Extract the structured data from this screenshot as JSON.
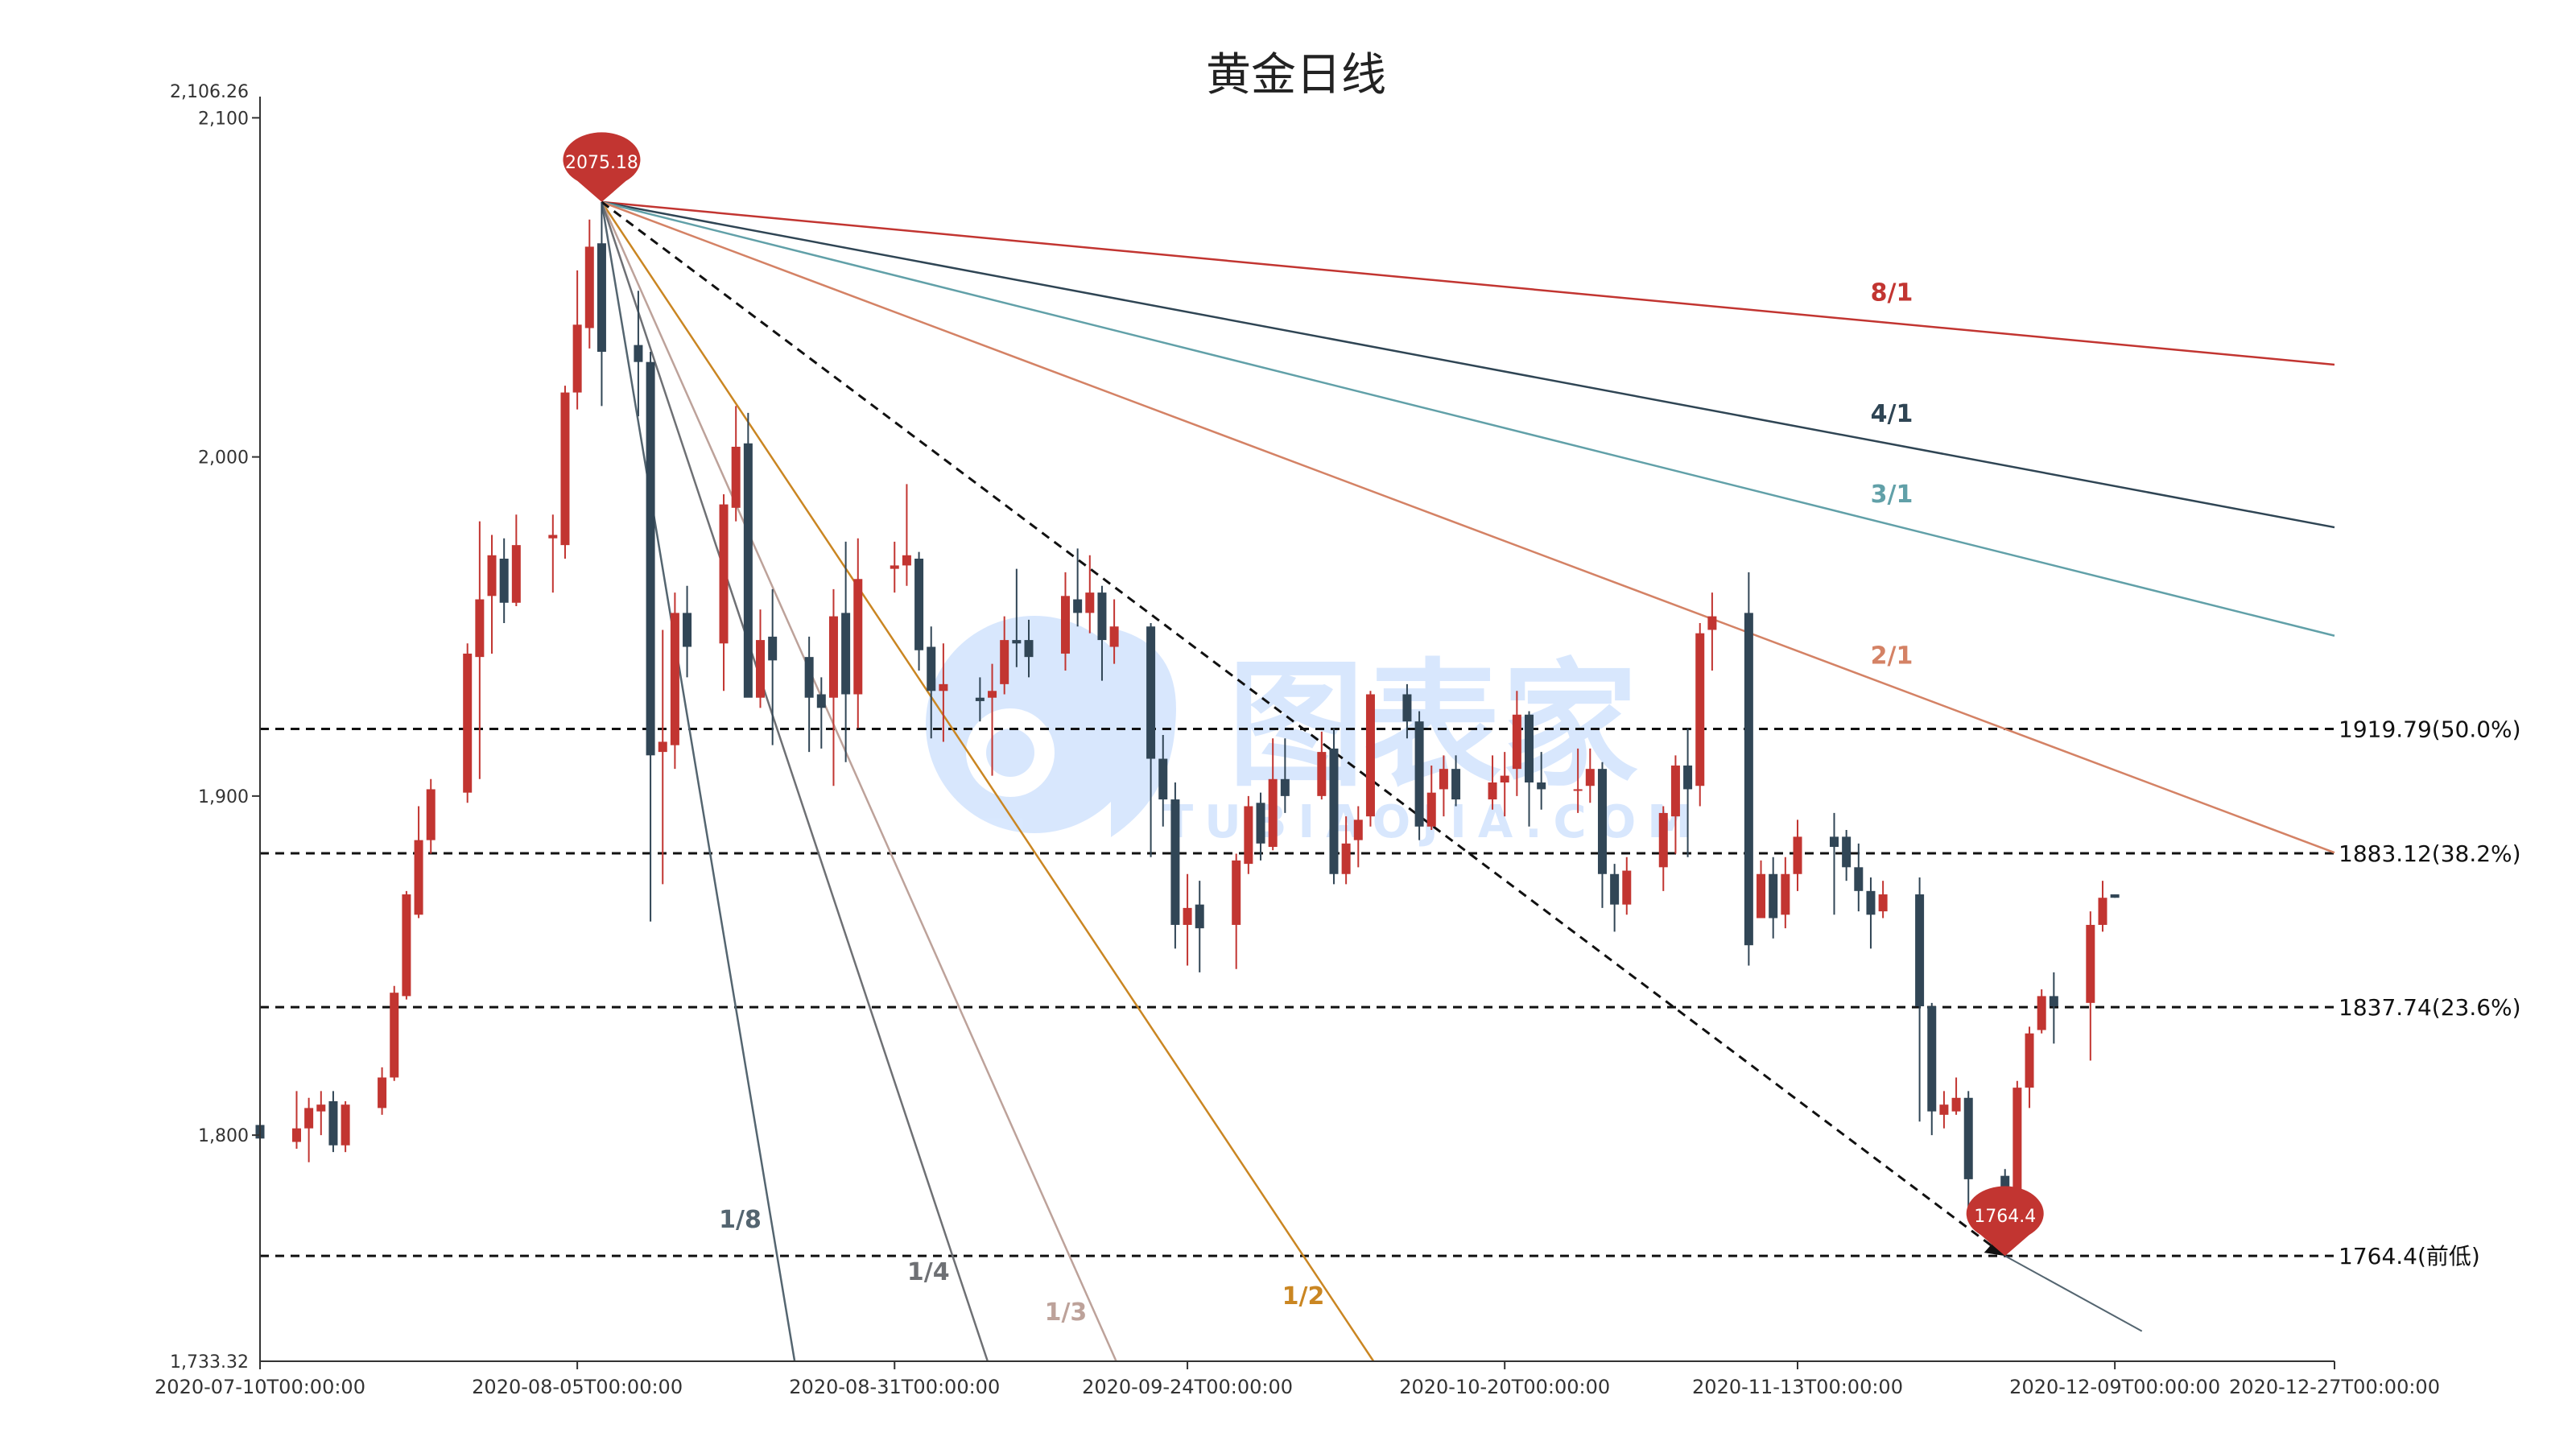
{
  "chart_data": {
    "type": "candlestick",
    "title": "黄金日线",
    "xlabel": "",
    "ylabel": "",
    "ylim": [
      1733.32,
      2106.26
    ],
    "xlim": [
      "2020-07-10",
      "2020-12-27"
    ],
    "y_extreme_labels": [
      "2,106.26",
      "1,733.32"
    ],
    "y_ticks": [
      {
        "value": 1800,
        "label": "1,800"
      },
      {
        "value": 1900,
        "label": "1,900"
      },
      {
        "value": 2000,
        "label": "2,000"
      },
      {
        "value": 2100,
        "label": "2,100"
      }
    ],
    "x_ticks": [
      {
        "date": "2020-07-10",
        "label": "2020-07-10T00:00:00"
      },
      {
        "date": "2020-08-05",
        "label": "2020-08-05T00:00:00"
      },
      {
        "date": "2020-08-31",
        "label": "2020-08-31T00:00:00"
      },
      {
        "date": "2020-09-24",
        "label": "2020-09-24T00:00:00"
      },
      {
        "date": "2020-10-20",
        "label": "2020-10-20T00:00:00"
      },
      {
        "date": "2020-11-13",
        "label": "2020-11-13T00:00:00"
      },
      {
        "date": "2020-12-09",
        "label": "2020-12-09T00:00:00"
      },
      {
        "date": "2020-12-27",
        "label": "2020-12-27T00:00:00"
      }
    ],
    "up_color": "#c23531",
    "down_color": "#314656",
    "candles": [
      {
        "date": "2020-07-10",
        "open": 1803,
        "high": 1810,
        "low": 1795,
        "close": 1799
      },
      {
        "date": "2020-07-13",
        "open": 1798,
        "high": 1813,
        "low": 1796,
        "close": 1802
      },
      {
        "date": "2020-07-14",
        "open": 1802,
        "high": 1811,
        "low": 1792,
        "close": 1808
      },
      {
        "date": "2020-07-15",
        "open": 1807,
        "high": 1813,
        "low": 1800,
        "close": 1809
      },
      {
        "date": "2020-07-16",
        "open": 1810,
        "high": 1813,
        "low": 1795,
        "close": 1797
      },
      {
        "date": "2020-07-17",
        "open": 1797,
        "high": 1810,
        "low": 1795,
        "close": 1809
      },
      {
        "date": "2020-07-20",
        "open": 1808,
        "high": 1820,
        "low": 1806,
        "close": 1817
      },
      {
        "date": "2020-07-21",
        "open": 1817,
        "high": 1844,
        "low": 1816,
        "close": 1842
      },
      {
        "date": "2020-07-22",
        "open": 1841,
        "high": 1872,
        "low": 1840,
        "close": 1871
      },
      {
        "date": "2020-07-23",
        "open": 1865,
        "high": 1897,
        "low": 1864,
        "close": 1887
      },
      {
        "date": "2020-07-24",
        "open": 1887,
        "high": 1905,
        "low": 1883,
        "close": 1902
      },
      {
        "date": "2020-07-27",
        "open": 1901,
        "high": 1945,
        "low": 1898,
        "close": 1942
      },
      {
        "date": "2020-07-28",
        "open": 1941,
        "high": 1981,
        "low": 1905,
        "close": 1958
      },
      {
        "date": "2020-07-29",
        "open": 1959,
        "high": 1977,
        "low": 1942,
        "close": 1971
      },
      {
        "date": "2020-07-30",
        "open": 1970,
        "high": 1976,
        "low": 1951,
        "close": 1957
      },
      {
        "date": "2020-07-31",
        "open": 1957,
        "high": 1983,
        "low": 1956,
        "close": 1974
      },
      {
        "date": "2020-08-03",
        "open": 1976,
        "high": 1983,
        "low": 1960,
        "close": 1977
      },
      {
        "date": "2020-08-04",
        "open": 1974,
        "high": 2021,
        "low": 1970,
        "close": 2019
      },
      {
        "date": "2020-08-05",
        "open": 2019,
        "high": 2055,
        "low": 2014,
        "close": 2039
      },
      {
        "date": "2020-08-06",
        "open": 2038,
        "high": 2070,
        "low": 2032,
        "close": 2062
      },
      {
        "date": "2020-08-07",
        "open": 2063,
        "high": 2075,
        "low": 2015,
        "close": 2031
      },
      {
        "date": "2020-08-10",
        "open": 2033,
        "high": 2049,
        "low": 2012,
        "close": 2028
      },
      {
        "date": "2020-08-11",
        "open": 2028,
        "high": 2031,
        "low": 1863,
        "close": 1912
      },
      {
        "date": "2020-08-12",
        "open": 1913,
        "high": 1949,
        "low": 1874,
        "close": 1916
      },
      {
        "date": "2020-08-13",
        "open": 1915,
        "high": 1960,
        "low": 1908,
        "close": 1954
      },
      {
        "date": "2020-08-14",
        "open": 1954,
        "high": 1962,
        "low": 1935,
        "close": 1944
      },
      {
        "date": "2020-08-17",
        "open": 1945,
        "high": 1989,
        "low": 1931,
        "close": 1986
      },
      {
        "date": "2020-08-18",
        "open": 1985,
        "high": 2015,
        "low": 1981,
        "close": 2003
      },
      {
        "date": "2020-08-19",
        "open": 2004,
        "high": 2013,
        "low": 1930,
        "close": 1929
      },
      {
        "date": "2020-08-20",
        "open": 1929,
        "high": 1955,
        "low": 1926,
        "close": 1946
      },
      {
        "date": "2020-08-21",
        "open": 1947,
        "high": 1961,
        "low": 1915,
        "close": 1940
      },
      {
        "date": "2020-08-24",
        "open": 1941,
        "high": 1947,
        "low": 1913,
        "close": 1929
      },
      {
        "date": "2020-08-25",
        "open": 1930,
        "high": 1935,
        "low": 1914,
        "close": 1926
      },
      {
        "date": "2020-08-26",
        "open": 1929,
        "high": 1961,
        "low": 1903,
        "close": 1953
      },
      {
        "date": "2020-08-27",
        "open": 1954,
        "high": 1975,
        "low": 1910,
        "close": 1930
      },
      {
        "date": "2020-08-28",
        "open": 1930,
        "high": 1976,
        "low": 1920,
        "close": 1964
      },
      {
        "date": "2020-08-31",
        "open": 1967,
        "high": 1975,
        "low": 1960,
        "close": 1968
      },
      {
        "date": "2020-09-01",
        "open": 1968,
        "high": 1992,
        "low": 1962,
        "close": 1971
      },
      {
        "date": "2020-09-02",
        "open": 1970,
        "high": 1972,
        "low": 1937,
        "close": 1943
      },
      {
        "date": "2020-09-03",
        "open": 1944,
        "high": 1950,
        "low": 1917,
        "close": 1931
      },
      {
        "date": "2020-09-04",
        "open": 1931,
        "high": 1945,
        "low": 1916,
        "close": 1933
      },
      {
        "date": "2020-09-07",
        "open": 1929,
        "high": 1935,
        "low": 1922,
        "close": 1928
      },
      {
        "date": "2020-09-08",
        "open": 1929,
        "high": 1939,
        "low": 1906,
        "close": 1931
      },
      {
        "date": "2020-09-09",
        "open": 1933,
        "high": 1953,
        "low": 1930,
        "close": 1946
      },
      {
        "date": "2020-09-10",
        "open": 1946,
        "high": 1967,
        "low": 1938,
        "close": 1945
      },
      {
        "date": "2020-09-11",
        "open": 1946,
        "high": 1952,
        "low": 1935,
        "close": 1941
      },
      {
        "date": "2020-09-14",
        "open": 1942,
        "high": 1966,
        "low": 1937,
        "close": 1959
      },
      {
        "date": "2020-09-15",
        "open": 1958,
        "high": 1973,
        "low": 1950,
        "close": 1954
      },
      {
        "date": "2020-09-16",
        "open": 1954,
        "high": 1971,
        "low": 1948,
        "close": 1960
      },
      {
        "date": "2020-09-17",
        "open": 1960,
        "high": 1962,
        "low": 1934,
        "close": 1946
      },
      {
        "date": "2020-09-18",
        "open": 1944,
        "high": 1958,
        "low": 1939,
        "close": 1950
      },
      {
        "date": "2020-09-21",
        "open": 1950,
        "high": 1951,
        "low": 1882,
        "close": 1911
      },
      {
        "date": "2020-09-22",
        "open": 1911,
        "high": 1918,
        "low": 1891,
        "close": 1899
      },
      {
        "date": "2020-09-23",
        "open": 1899,
        "high": 1904,
        "low": 1855,
        "close": 1862
      },
      {
        "date": "2020-09-24",
        "open": 1862,
        "high": 1877,
        "low": 1850,
        "close": 1867
      },
      {
        "date": "2020-09-25",
        "open": 1868,
        "high": 1875,
        "low": 1848,
        "close": 1861
      },
      {
        "date": "2020-09-28",
        "open": 1862,
        "high": 1883,
        "low": 1849,
        "close": 1881
      },
      {
        "date": "2020-09-29",
        "open": 1880,
        "high": 1900,
        "low": 1877,
        "close": 1897
      },
      {
        "date": "2020-09-30",
        "open": 1898,
        "high": 1901,
        "low": 1881,
        "close": 1886
      },
      {
        "date": "2020-10-01",
        "open": 1885,
        "high": 1917,
        "low": 1884,
        "close": 1905
      },
      {
        "date": "2020-10-02",
        "open": 1905,
        "high": 1917,
        "low": 1895,
        "close": 1900
      },
      {
        "date": "2020-10-05",
        "open": 1900,
        "high": 1919,
        "low": 1899,
        "close": 1913
      },
      {
        "date": "2020-10-06",
        "open": 1914,
        "high": 1920,
        "low": 1874,
        "close": 1877
      },
      {
        "date": "2020-10-07",
        "open": 1877,
        "high": 1894,
        "low": 1874,
        "close": 1886
      },
      {
        "date": "2020-10-08",
        "open": 1887,
        "high": 1897,
        "low": 1879,
        "close": 1893
      },
      {
        "date": "2020-10-09",
        "open": 1894,
        "high": 1931,
        "low": 1891,
        "close": 1930
      },
      {
        "date": "2020-10-12",
        "open": 1930,
        "high": 1933,
        "low": 1917,
        "close": 1922
      },
      {
        "date": "2020-10-13",
        "open": 1922,
        "high": 1925,
        "low": 1887,
        "close": 1891
      },
      {
        "date": "2020-10-14",
        "open": 1891,
        "high": 1909,
        "low": 1890,
        "close": 1901
      },
      {
        "date": "2020-10-15",
        "open": 1902,
        "high": 1912,
        "low": 1894,
        "close": 1908
      },
      {
        "date": "2020-10-16",
        "open": 1908,
        "high": 1912,
        "low": 1897,
        "close": 1899
      },
      {
        "date": "2020-10-19",
        "open": 1899,
        "high": 1912,
        "low": 1896,
        "close": 1904
      },
      {
        "date": "2020-10-20",
        "open": 1904,
        "high": 1913,
        "low": 1894,
        "close": 1906
      },
      {
        "date": "2020-10-21",
        "open": 1908,
        "high": 1931,
        "low": 1900,
        "close": 1924
      },
      {
        "date": "2020-10-22",
        "open": 1924,
        "high": 1925,
        "low": 1891,
        "close": 1904
      },
      {
        "date": "2020-10-23",
        "open": 1904,
        "high": 1913,
        "low": 1896,
        "close": 1902
      },
      {
        "date": "2020-10-26",
        "open": 1902,
        "high": 1914,
        "low": 1895,
        "close": 1902
      },
      {
        "date": "2020-10-27",
        "open": 1903,
        "high": 1914,
        "low": 1898,
        "close": 1908
      },
      {
        "date": "2020-10-28",
        "open": 1908,
        "high": 1910,
        "low": 1867,
        "close": 1877
      },
      {
        "date": "2020-10-29",
        "open": 1877,
        "high": 1880,
        "low": 1860,
        "close": 1868
      },
      {
        "date": "2020-10-30",
        "open": 1868,
        "high": 1882,
        "low": 1865,
        "close": 1878
      },
      {
        "date": "2020-11-02",
        "open": 1879,
        "high": 1897,
        "low": 1872,
        "close": 1895
      },
      {
        "date": "2020-11-03",
        "open": 1894,
        "high": 1912,
        "low": 1883,
        "close": 1909
      },
      {
        "date": "2020-11-04",
        "open": 1909,
        "high": 1920,
        "low": 1882,
        "close": 1902
      },
      {
        "date": "2020-11-05",
        "open": 1903,
        "high": 1951,
        "low": 1897,
        "close": 1948
      },
      {
        "date": "2020-11-06",
        "open": 1949,
        "high": 1960,
        "low": 1937,
        "close": 1953
      },
      {
        "date": "2020-11-09",
        "open": 1954,
        "high": 1966,
        "low": 1850,
        "close": 1856
      },
      {
        "date": "2020-11-10",
        "open": 1864,
        "high": 1881,
        "low": 1864,
        "close": 1877
      },
      {
        "date": "2020-11-11",
        "open": 1877,
        "high": 1882,
        "low": 1858,
        "close": 1864
      },
      {
        "date": "2020-11-12",
        "open": 1865,
        "high": 1882,
        "low": 1861,
        "close": 1877
      },
      {
        "date": "2020-11-13",
        "open": 1877,
        "high": 1893,
        "low": 1872,
        "close": 1888
      },
      {
        "date": "2020-11-16",
        "open": 1888,
        "high": 1895,
        "low": 1865,
        "close": 1885
      },
      {
        "date": "2020-11-17",
        "open": 1888,
        "high": 1890,
        "low": 1875,
        "close": 1879
      },
      {
        "date": "2020-11-18",
        "open": 1879,
        "high": 1886,
        "low": 1866,
        "close": 1872
      },
      {
        "date": "2020-11-19",
        "open": 1872,
        "high": 1876,
        "low": 1855,
        "close": 1865
      },
      {
        "date": "2020-11-20",
        "open": 1866,
        "high": 1875,
        "low": 1864,
        "close": 1871
      },
      {
        "date": "2020-11-23",
        "open": 1871,
        "high": 1876,
        "low": 1804,
        "close": 1838
      },
      {
        "date": "2020-11-24",
        "open": 1838,
        "high": 1839,
        "low": 1800,
        "close": 1807
      },
      {
        "date": "2020-11-25",
        "open": 1806,
        "high": 1813,
        "low": 1802,
        "close": 1809
      },
      {
        "date": "2020-11-26",
        "open": 1807,
        "high": 1817,
        "low": 1806,
        "close": 1811
      },
      {
        "date": "2020-11-27",
        "open": 1811,
        "high": 1813,
        "low": 1776,
        "close": 1787
      },
      {
        "date": "2020-11-30",
        "open": 1788,
        "high": 1790,
        "low": 1764,
        "close": 1776
      },
      {
        "date": "2020-12-01",
        "open": 1777,
        "high": 1816,
        "low": 1773,
        "close": 1814
      },
      {
        "date": "2020-12-02",
        "open": 1814,
        "high": 1832,
        "low": 1808,
        "close": 1830
      },
      {
        "date": "2020-12-03",
        "open": 1831,
        "high": 1843,
        "low": 1830,
        "close": 1841
      },
      {
        "date": "2020-12-04",
        "open": 1841,
        "high": 1848,
        "low": 1827,
        "close": 1838
      },
      {
        "date": "2020-12-07",
        "open": 1839,
        "high": 1866,
        "low": 1822,
        "close": 1862
      },
      {
        "date": "2020-12-08",
        "open": 1862,
        "high": 1875,
        "low": 1860,
        "close": 1870
      },
      {
        "date": "2020-12-09",
        "open": 1871,
        "high": 1871,
        "low": 1870,
        "close": 1870
      }
    ],
    "markers": [
      {
        "id": "high",
        "date": "2020-08-07",
        "price": 2075.18,
        "label": "2075.18",
        "color": "#c23531"
      },
      {
        "id": "low",
        "date": "2020-11-30",
        "price": 1764.4,
        "label": "1764.4",
        "color": "#c23531"
      }
    ],
    "horizontal_lines": [
      {
        "price": 1919.79,
        "label": "1919.79(50.0%)"
      },
      {
        "price": 1883.12,
        "label": "1883.12(38.2%)"
      },
      {
        "price": 1837.74,
        "label": "1837.74(23.6%)"
      },
      {
        "price": 1764.4,
        "label": "1764.4(前低)"
      }
    ],
    "gann_fan": {
      "origin": {
        "date": "2020-08-07",
        "price": 2075.18
      },
      "main_line_end": {
        "date": "2020-11-30",
        "price": 1764.4
      },
      "lines": [
        {
          "label": "8/1",
          "ratio": 8,
          "color": "#c23531"
        },
        {
          "label": "4/1",
          "ratio": 4,
          "color": "#2f4554"
        },
        {
          "label": "3/1",
          "ratio": 3,
          "color": "#61a0a8"
        },
        {
          "label": "2/1",
          "ratio": 2,
          "color": "#d48265"
        },
        {
          "label": "1/2",
          "ratio": 0.5,
          "color": "#ca8622"
        },
        {
          "label": "1/3",
          "ratio": 0.3333,
          "color": "#bda29a"
        },
        {
          "label": "1/4",
          "ratio": 0.25,
          "color": "#6e7074"
        },
        {
          "label": "1/8",
          "ratio": 0.125,
          "color": "#546570"
        }
      ]
    },
    "grid": false,
    "legend": "none",
    "watermark": "图表家 TUBIAOJIA.COM"
  }
}
